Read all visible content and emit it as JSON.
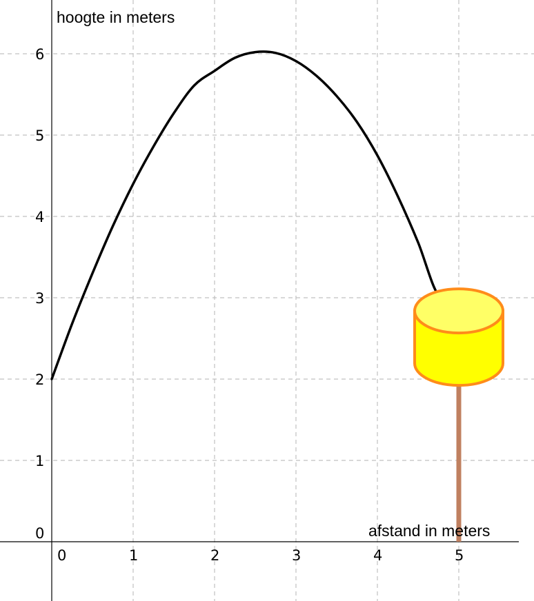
{
  "chart_data": {
    "type": "line",
    "title": "",
    "xlabel": "afstand in meters",
    "ylabel": "hoogte in meters",
    "xlim": [
      -0.6,
      5.75
    ],
    "ylim": [
      -0.6,
      6.6
    ],
    "x_ticks": [
      0,
      1,
      2,
      3,
      4,
      5
    ],
    "y_ticks": [
      0,
      1,
      2,
      3,
      4,
      5,
      6
    ],
    "grid": true,
    "series": [
      {
        "color": "#000000",
        "x": [
          0,
          0.25,
          0.5,
          0.75,
          1,
          1.25,
          1.5,
          1.75,
          2,
          2.25,
          2.5,
          2.75,
          3,
          3.25,
          3.5,
          3.75,
          4,
          4.25,
          4.5,
          4.75,
          5
        ],
        "y": [
          2.0,
          2.68,
          3.3,
          3.88,
          4.4,
          4.86,
          5.27,
          5.61,
          5.79,
          5.95,
          6.02,
          6.01,
          5.91,
          5.73,
          5.48,
          5.16,
          4.75,
          4.25,
          3.68,
          3.03,
          3.0
        ]
      }
    ],
    "basket": {
      "x": 5,
      "y_rim": 2.55,
      "colors": {
        "fill": "#ffff00",
        "top": "#ffff66",
        "outline": "#ff8c1a",
        "pole": "#c08060"
      }
    }
  }
}
